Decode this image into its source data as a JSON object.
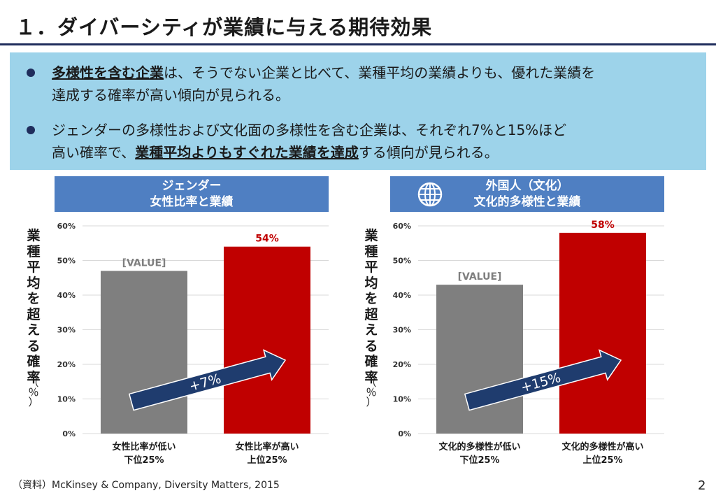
{
  "title": "１．ダイバーシティが業績に与える期待効果",
  "bullets": [
    {
      "emphasis": "多様性を含む企業",
      "line1_rest": "は、そうでない企業と比べて、業種平均の業績よりも、優れた業績を",
      "line2": "達成する確率が高い傾向が見られる。"
    },
    {
      "line1": "ジェンダーの多様性および文化面の多様性を含む企業は、それぞれ7%と15%ほど",
      "line2_pre": "高い確率で、",
      "emphasis": "業種平均よりもすぐれた業績を達成",
      "line2_post": "する傾向が見られる。"
    }
  ],
  "y_axis_label": "業種平均を超える確率",
  "y_axis_unit": "（％）",
  "footer": "（資料）McKinsey & Company, Diversity Matters, 2015",
  "page_number": "2",
  "icons": {
    "globe": "globe-icon"
  },
  "colors": {
    "gray_bar": "#7f7f7f",
    "red_bar": "#c00000",
    "arrow": "#1f3c6e",
    "header": "#4f7fc2",
    "value_red": "#c00000",
    "value_gray": "#7f7f7f"
  },
  "chart_data": [
    {
      "type": "bar",
      "title_line1": "ジェンダー",
      "title_line2": "女性比率と業績",
      "categories": [
        [
          "女性比率が低い",
          "下位25%"
        ],
        [
          "女性比率が高い",
          "上位25%"
        ]
      ],
      "values": [
        47,
        54
      ],
      "data_labels": [
        "[VALUE]",
        "54%"
      ],
      "ylim": [
        0,
        60
      ],
      "yticks": [
        "0%",
        "10%",
        "20%",
        "30%",
        "40%",
        "50%",
        "60%"
      ],
      "arrow_label": "+7%",
      "grid": true
    },
    {
      "type": "bar",
      "title_line1": "外国人（文化）",
      "title_line2": "文化的多様性と業績",
      "categories": [
        [
          "文化的多様性が低い",
          "下位25%"
        ],
        [
          "文化的多様性が高い",
          "上位25%"
        ]
      ],
      "values": [
        43,
        58
      ],
      "data_labels": [
        "[VALUE]",
        "58%"
      ],
      "ylim": [
        0,
        60
      ],
      "yticks": [
        "0%",
        "10%",
        "20%",
        "30%",
        "40%",
        "50%",
        "60%"
      ],
      "arrow_label": "+15%",
      "grid": true
    }
  ]
}
